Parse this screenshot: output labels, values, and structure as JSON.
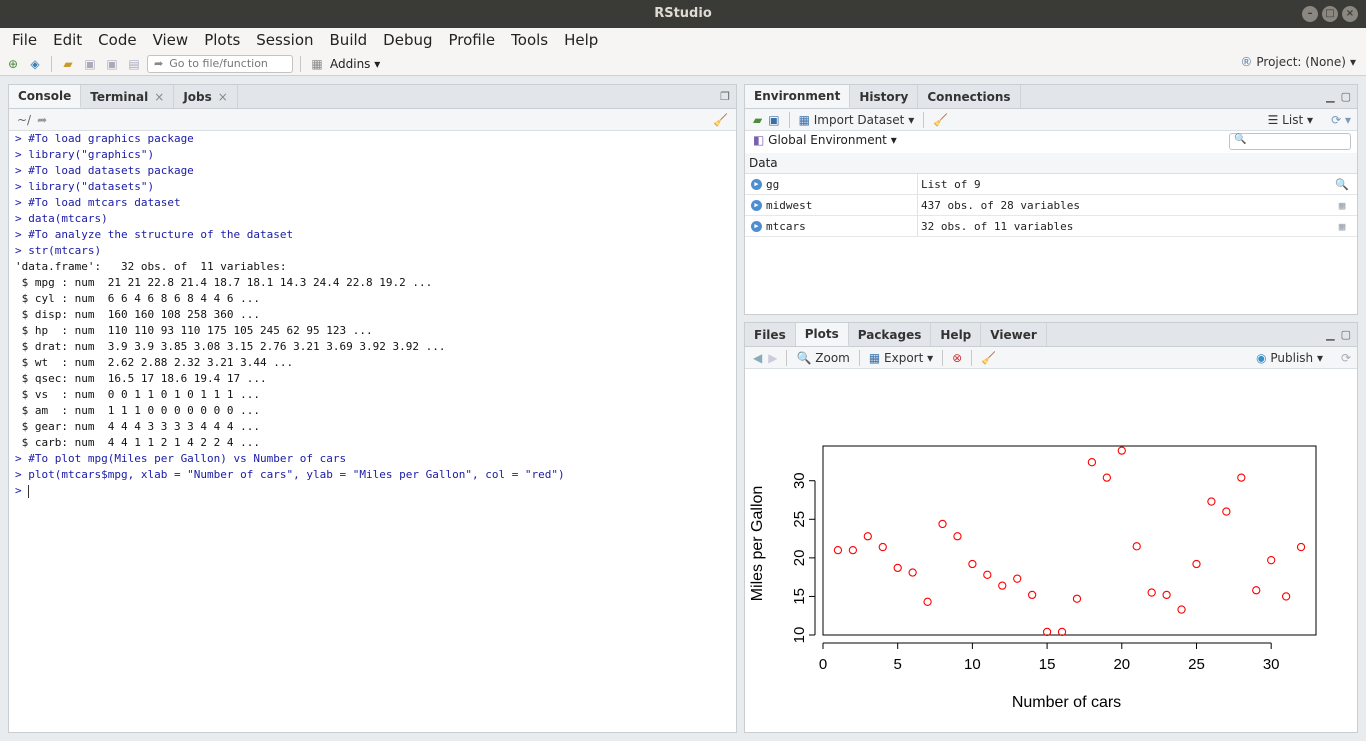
{
  "window": {
    "title": "RStudio"
  },
  "menu": [
    "File",
    "Edit",
    "Code",
    "View",
    "Plots",
    "Session",
    "Build",
    "Debug",
    "Profile",
    "Tools",
    "Help"
  ],
  "toolbar": {
    "goto_placeholder": "Go to file/function",
    "addins_label": "Addins",
    "project_label": "Project: (None)"
  },
  "console_pane": {
    "tabs": [
      "Console",
      "Terminal",
      "Jobs"
    ],
    "path": "~/",
    "lines": [
      {
        "type": "in",
        "text": "> #To load graphics package"
      },
      {
        "type": "in",
        "text": "> library(\"graphics\")"
      },
      {
        "type": "in",
        "text": "> #To load datasets package"
      },
      {
        "type": "in",
        "text": "> library(\"datasets\")"
      },
      {
        "type": "in",
        "text": "> #To load mtcars dataset"
      },
      {
        "type": "in",
        "text": "> data(mtcars)"
      },
      {
        "type": "in",
        "text": "> #To analyze the structure of the dataset"
      },
      {
        "type": "in",
        "text": "> str(mtcars)"
      },
      {
        "type": "out",
        "text": "'data.frame':   32 obs. of  11 variables:"
      },
      {
        "type": "out",
        "text": " $ mpg : num  21 21 22.8 21.4 18.7 18.1 14.3 24.4 22.8 19.2 ..."
      },
      {
        "type": "out",
        "text": " $ cyl : num  6 6 4 6 8 6 8 4 4 6 ..."
      },
      {
        "type": "out",
        "text": " $ disp: num  160 160 108 258 360 ..."
      },
      {
        "type": "out",
        "text": " $ hp  : num  110 110 93 110 175 105 245 62 95 123 ..."
      },
      {
        "type": "out",
        "text": " $ drat: num  3.9 3.9 3.85 3.08 3.15 2.76 3.21 3.69 3.92 3.92 ..."
      },
      {
        "type": "out",
        "text": " $ wt  : num  2.62 2.88 2.32 3.21 3.44 ..."
      },
      {
        "type": "out",
        "text": " $ qsec: num  16.5 17 18.6 19.4 17 ..."
      },
      {
        "type": "out",
        "text": " $ vs  : num  0 0 1 1 0 1 0 1 1 1 ..."
      },
      {
        "type": "out",
        "text": " $ am  : num  1 1 1 0 0 0 0 0 0 0 ..."
      },
      {
        "type": "out",
        "text": " $ gear: num  4 4 4 3 3 3 3 4 4 4 ..."
      },
      {
        "type": "out",
        "text": " $ carb: num  4 4 1 1 2 1 4 2 2 4 ..."
      },
      {
        "type": "in",
        "text": "> #To plot mpg(Miles per Gallon) vs Number of cars"
      },
      {
        "type": "in",
        "text": "> plot(mtcars$mpg, xlab = \"Number of cars\", ylab = \"Miles per Gallon\", col = \"red\")"
      }
    ],
    "prompt": "> "
  },
  "env_pane": {
    "tabs": [
      "Environment",
      "History",
      "Connections"
    ],
    "import_label": "Import Dataset",
    "list_label": "List",
    "scope_label": "Global Environment",
    "section": "Data",
    "rows": [
      {
        "name": "gg",
        "value": "List of 9"
      },
      {
        "name": "midwest",
        "value": "437 obs. of 28 variables"
      },
      {
        "name": "mtcars",
        "value": "32 obs. of 11 variables"
      }
    ]
  },
  "plots_pane": {
    "tabs": [
      "Files",
      "Plots",
      "Packages",
      "Help",
      "Viewer"
    ],
    "zoom_label": "Zoom",
    "export_label": "Export",
    "publish_label": "Publish"
  },
  "chart_data": {
    "type": "scatter",
    "title": "",
    "xlabel": "Number of cars",
    "ylabel": "Miles per Gallon",
    "xlim": [
      0,
      33
    ],
    "ylim": [
      10,
      34.5
    ],
    "xticks": [
      0,
      5,
      10,
      15,
      20,
      25,
      30
    ],
    "yticks": [
      10,
      15,
      20,
      25,
      30
    ],
    "point_color": "#ff0000",
    "grid": false,
    "x": [
      1,
      2,
      3,
      4,
      5,
      6,
      7,
      8,
      9,
      10,
      11,
      12,
      13,
      14,
      15,
      16,
      17,
      18,
      19,
      20,
      21,
      22,
      23,
      24,
      25,
      26,
      27,
      28,
      29,
      30,
      31,
      32
    ],
    "y": [
      21,
      21,
      22.8,
      21.4,
      18.7,
      18.1,
      14.3,
      24.4,
      22.8,
      19.2,
      17.8,
      16.4,
      17.3,
      15.2,
      10.4,
      10.4,
      14.7,
      32.4,
      30.4,
      33.9,
      21.5,
      15.5,
      15.2,
      13.3,
      19.2,
      27.3,
      26,
      30.4,
      15.8,
      19.7,
      15,
      21.4
    ]
  }
}
